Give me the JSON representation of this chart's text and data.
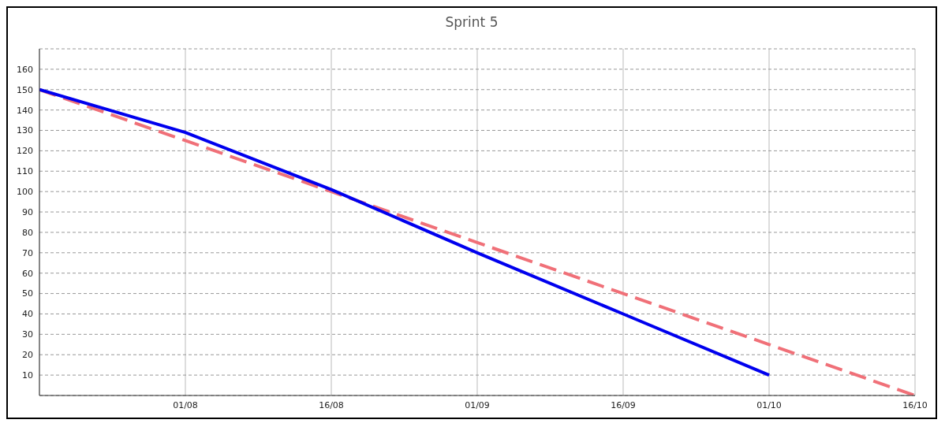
{
  "chart_data": {
    "type": "line",
    "title": "Sprint 5",
    "categories": [
      null,
      "01/08",
      "16/08",
      "01/09",
      "16/09",
      "01/10",
      "16/10"
    ],
    "series": [
      {
        "color": "#f07078",
        "line_style": "dashed",
        "values": [
          150,
          125,
          100,
          75,
          50,
          25,
          0
        ]
      },
      {
        "color": "#0000ee",
        "line_style": "solid",
        "values": [
          150,
          129,
          101,
          70,
          40,
          10,
          null
        ]
      }
    ],
    "ylim": [
      0,
      170
    ],
    "yticks": [
      10,
      20,
      30,
      40,
      50,
      60,
      70,
      80,
      90,
      100,
      110,
      120,
      130,
      140,
      150,
      160
    ],
    "grid": true,
    "marker": "none"
  }
}
